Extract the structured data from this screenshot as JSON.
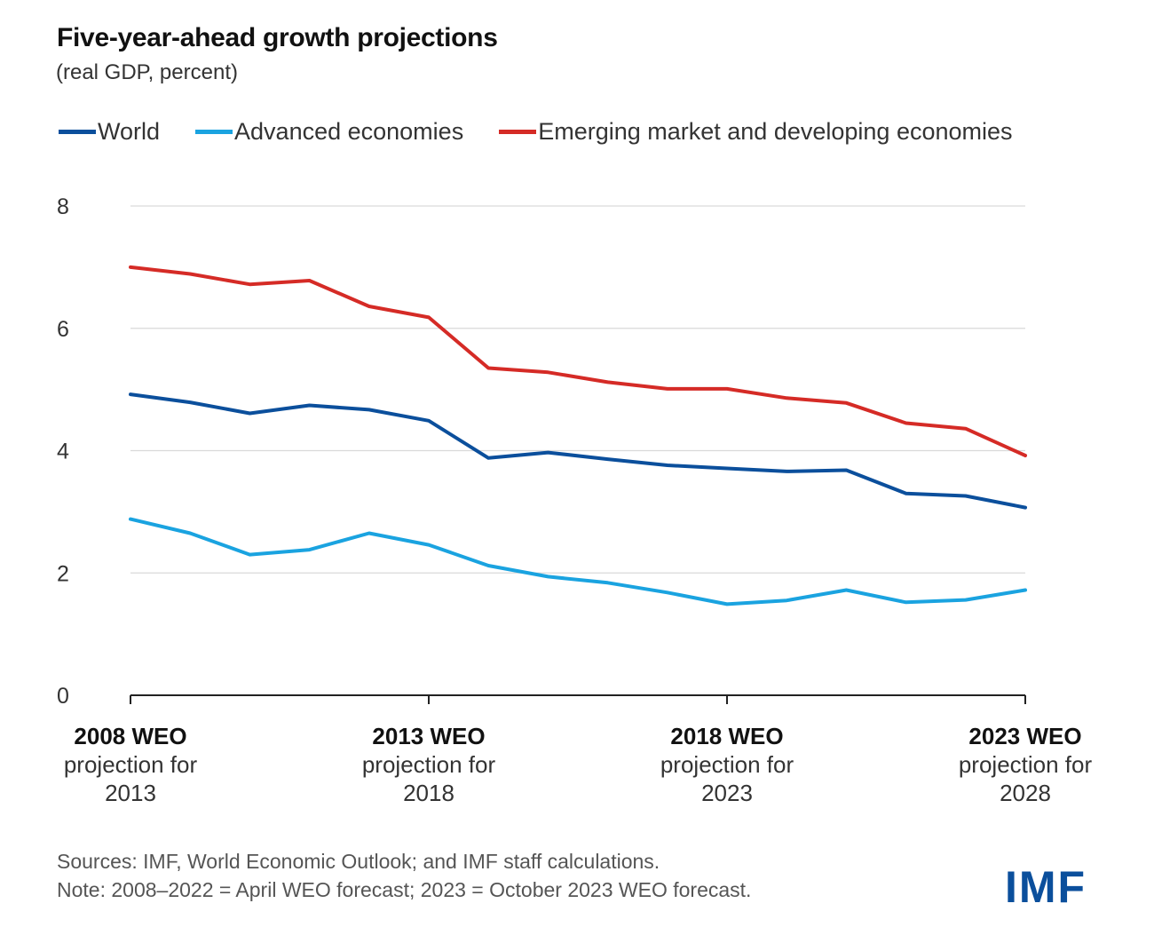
{
  "title": "Five-year-ahead growth projections",
  "subtitle": "(real GDP, percent)",
  "legend": [
    {
      "label": "World",
      "color": "#0b4f9c"
    },
    {
      "label": "Advanced economies",
      "color": "#1aa3e0"
    },
    {
      "label": "Emerging market and developing economies",
      "color": "#d52b26"
    }
  ],
  "source_line": "Sources: IMF, World Economic Outlook; and IMF staff calculations.",
  "note_line": "Note: 2008–2022 = April WEO forecast; 2023 = October 2023 WEO forecast.",
  "logo_text": "IMF",
  "logo_color": "#0b4f9c",
  "chart_data": {
    "type": "line",
    "title": "Five-year-ahead growth projections",
    "subtitle": "(real GDP, percent)",
    "x": [
      2008,
      2009,
      2010,
      2011,
      2012,
      2013,
      2014,
      2015,
      2016,
      2017,
      2018,
      2019,
      2020,
      2021,
      2022,
      2023
    ],
    "ylim": [
      0,
      8
    ],
    "yticks": [
      0,
      2,
      4,
      6,
      8
    ],
    "grid": true,
    "legend_position": "top",
    "xtick_labels": [
      {
        "x": 2008,
        "bold": "2008 WEO",
        "line2": "projection for",
        "line3": "2013"
      },
      {
        "x": 2013,
        "bold": "2013 WEO",
        "line2": "projection for",
        "line3": "2018"
      },
      {
        "x": 2018,
        "bold": "2018 WEO",
        "line2": "projection for",
        "line3": "2023"
      },
      {
        "x": 2023,
        "bold": "2023 WEO",
        "line2": "projection for",
        "line3": "2028"
      }
    ],
    "series": [
      {
        "name": "World",
        "color": "#0b4f9c",
        "values": [
          4.92,
          4.79,
          4.61,
          4.74,
          4.67,
          4.49,
          3.88,
          3.97,
          3.86,
          3.76,
          3.71,
          3.66,
          3.68,
          3.3,
          3.26,
          3.07
        ]
      },
      {
        "name": "Advanced economies",
        "color": "#1aa3e0",
        "values": [
          2.88,
          2.65,
          2.3,
          2.38,
          2.65,
          2.46,
          2.12,
          1.94,
          1.84,
          1.68,
          1.49,
          1.55,
          1.72,
          1.52,
          1.56,
          1.72
        ]
      },
      {
        "name": "Emerging market and developing economies",
        "color": "#d52b26",
        "values": [
          7.0,
          6.89,
          6.72,
          6.78,
          6.36,
          6.18,
          5.35,
          5.28,
          5.12,
          5.01,
          5.01,
          4.86,
          4.78,
          4.45,
          4.36,
          3.92
        ]
      }
    ]
  }
}
